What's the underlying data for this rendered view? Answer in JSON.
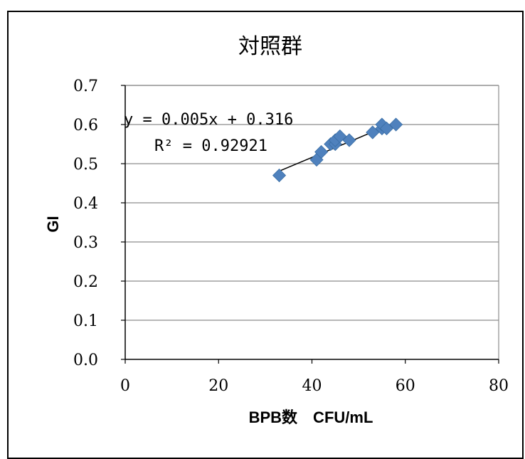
{
  "chart_data": {
    "type": "scatter",
    "title": "対照群",
    "xlabel": "BPB数　CFU/mL",
    "ylabel": "GI",
    "xlim": [
      0,
      80
    ],
    "ylim": [
      0.0,
      0.7
    ],
    "x_ticks": [
      "0",
      "20",
      "40",
      "60",
      "80"
    ],
    "y_ticks": [
      "0.0",
      "0.1",
      "0.2",
      "0.3",
      "0.4",
      "0.5",
      "0.6",
      "0.7"
    ],
    "grid": "horizontal",
    "marker": "diamond",
    "marker_color": "#4F81BD",
    "trendline_color": "#000000",
    "points": [
      {
        "x": 33,
        "y": 0.47
      },
      {
        "x": 41,
        "y": 0.51
      },
      {
        "x": 42,
        "y": 0.53
      },
      {
        "x": 44,
        "y": 0.55
      },
      {
        "x": 45,
        "y": 0.55
      },
      {
        "x": 45,
        "y": 0.56
      },
      {
        "x": 46,
        "y": 0.57
      },
      {
        "x": 48,
        "y": 0.56
      },
      {
        "x": 53,
        "y": 0.58
      },
      {
        "x": 55,
        "y": 0.59
      },
      {
        "x": 55,
        "y": 0.6
      },
      {
        "x": 56,
        "y": 0.59
      },
      {
        "x": 58,
        "y": 0.6
      }
    ],
    "trendline": {
      "slope": 0.005,
      "intercept": 0.316,
      "x_range": [
        33,
        58
      ],
      "equation": "y = 0.005x + 0.316",
      "r_squared": "R² = 0.92921"
    }
  }
}
